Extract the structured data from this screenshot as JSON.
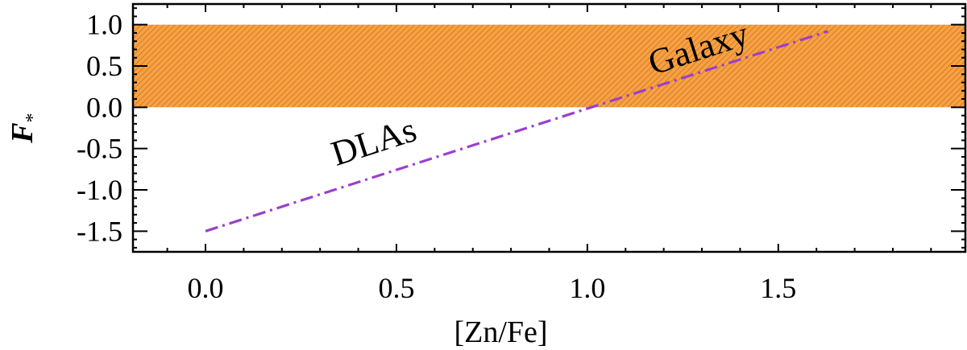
{
  "chart_data": {
    "type": "line",
    "title": "",
    "xlabel": "[Zn/Fe]",
    "ylabel": "F",
    "ylabel_subscript": "*",
    "xlim": [
      -0.19,
      1.99
    ],
    "ylim": [
      -1.75,
      1.25
    ],
    "x_ticks": [
      0.0,
      0.5,
      1.0,
      1.5
    ],
    "x_tick_labels": [
      "0.0",
      "0.5",
      "1.0",
      "1.5"
    ],
    "y_ticks": [
      1.0,
      0.5,
      0.0,
      -0.5,
      -1.0,
      -1.5
    ],
    "y_tick_labels": [
      "1.0",
      "0.5",
      "0.0",
      "-0.5",
      "-1.0",
      "-1.5"
    ],
    "grid": false,
    "band": {
      "y_range": [
        0.0,
        1.0
      ],
      "color": "#f08c1e"
    },
    "series": [
      {
        "style": "dash-dot",
        "color": "#9b3fcf",
        "x": [
          0.0,
          1.63
        ],
        "y": [
          -1.5,
          0.92
        ]
      }
    ],
    "annotations": [
      {
        "text": "DLAs",
        "x": 0.45,
        "y": -0.55
      },
      {
        "text": "Galaxy",
        "x": 1.3,
        "y": 0.58
      }
    ]
  }
}
